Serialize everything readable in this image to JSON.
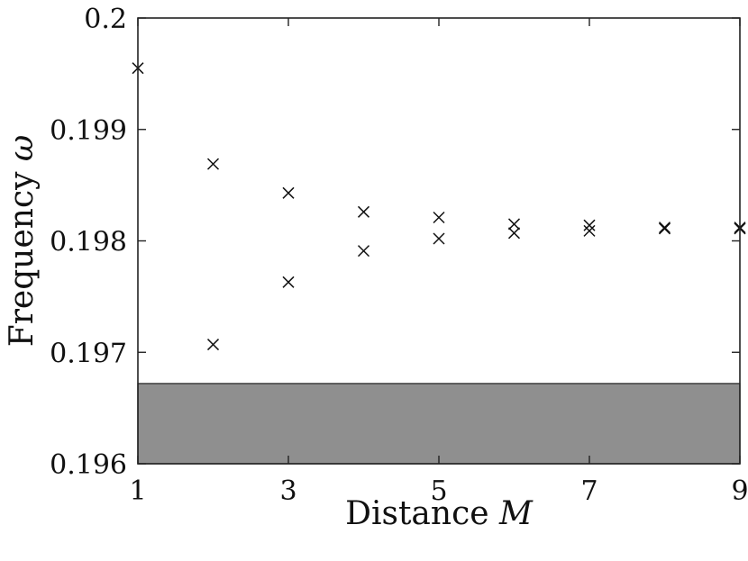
{
  "chart_data": {
    "type": "scatter",
    "xlabel": "Distance",
    "xlabel_symbol": "M",
    "ylabel": "Frequency",
    "ylabel_symbol": "ω",
    "xlim": [
      1,
      9
    ],
    "ylim": [
      0.196,
      0.2
    ],
    "xticks": [
      1,
      3,
      5,
      7,
      9
    ],
    "xtick_labels": [
      "1",
      "3",
      "5",
      "7",
      "9"
    ],
    "yticks": [
      0.196,
      0.197,
      0.198,
      0.199,
      0.2
    ],
    "ytick_labels": [
      "0.196",
      "0.197",
      "0.198",
      "0.199",
      "0.2"
    ],
    "grid": false,
    "marker": "x",
    "series": [
      {
        "x": [
          1,
          2,
          2,
          3,
          3,
          4,
          4,
          5,
          5,
          6,
          6,
          7,
          7,
          8,
          8,
          9,
          9
        ],
        "y": [
          0.19955,
          0.19869,
          0.19707,
          0.19843,
          0.19763,
          0.19826,
          0.19791,
          0.19821,
          0.19802,
          0.19815,
          0.19807,
          0.19814,
          0.19809,
          0.19812,
          0.19811,
          0.19812,
          0.19811
        ]
      }
    ],
    "shaded_region": {
      "y_from": 0.196,
      "y_to": 0.19672,
      "color": "#8f8f8f"
    },
    "colors": {
      "marker": "#111111",
      "axes": "#222222",
      "shade": "#8f8f8f"
    }
  }
}
